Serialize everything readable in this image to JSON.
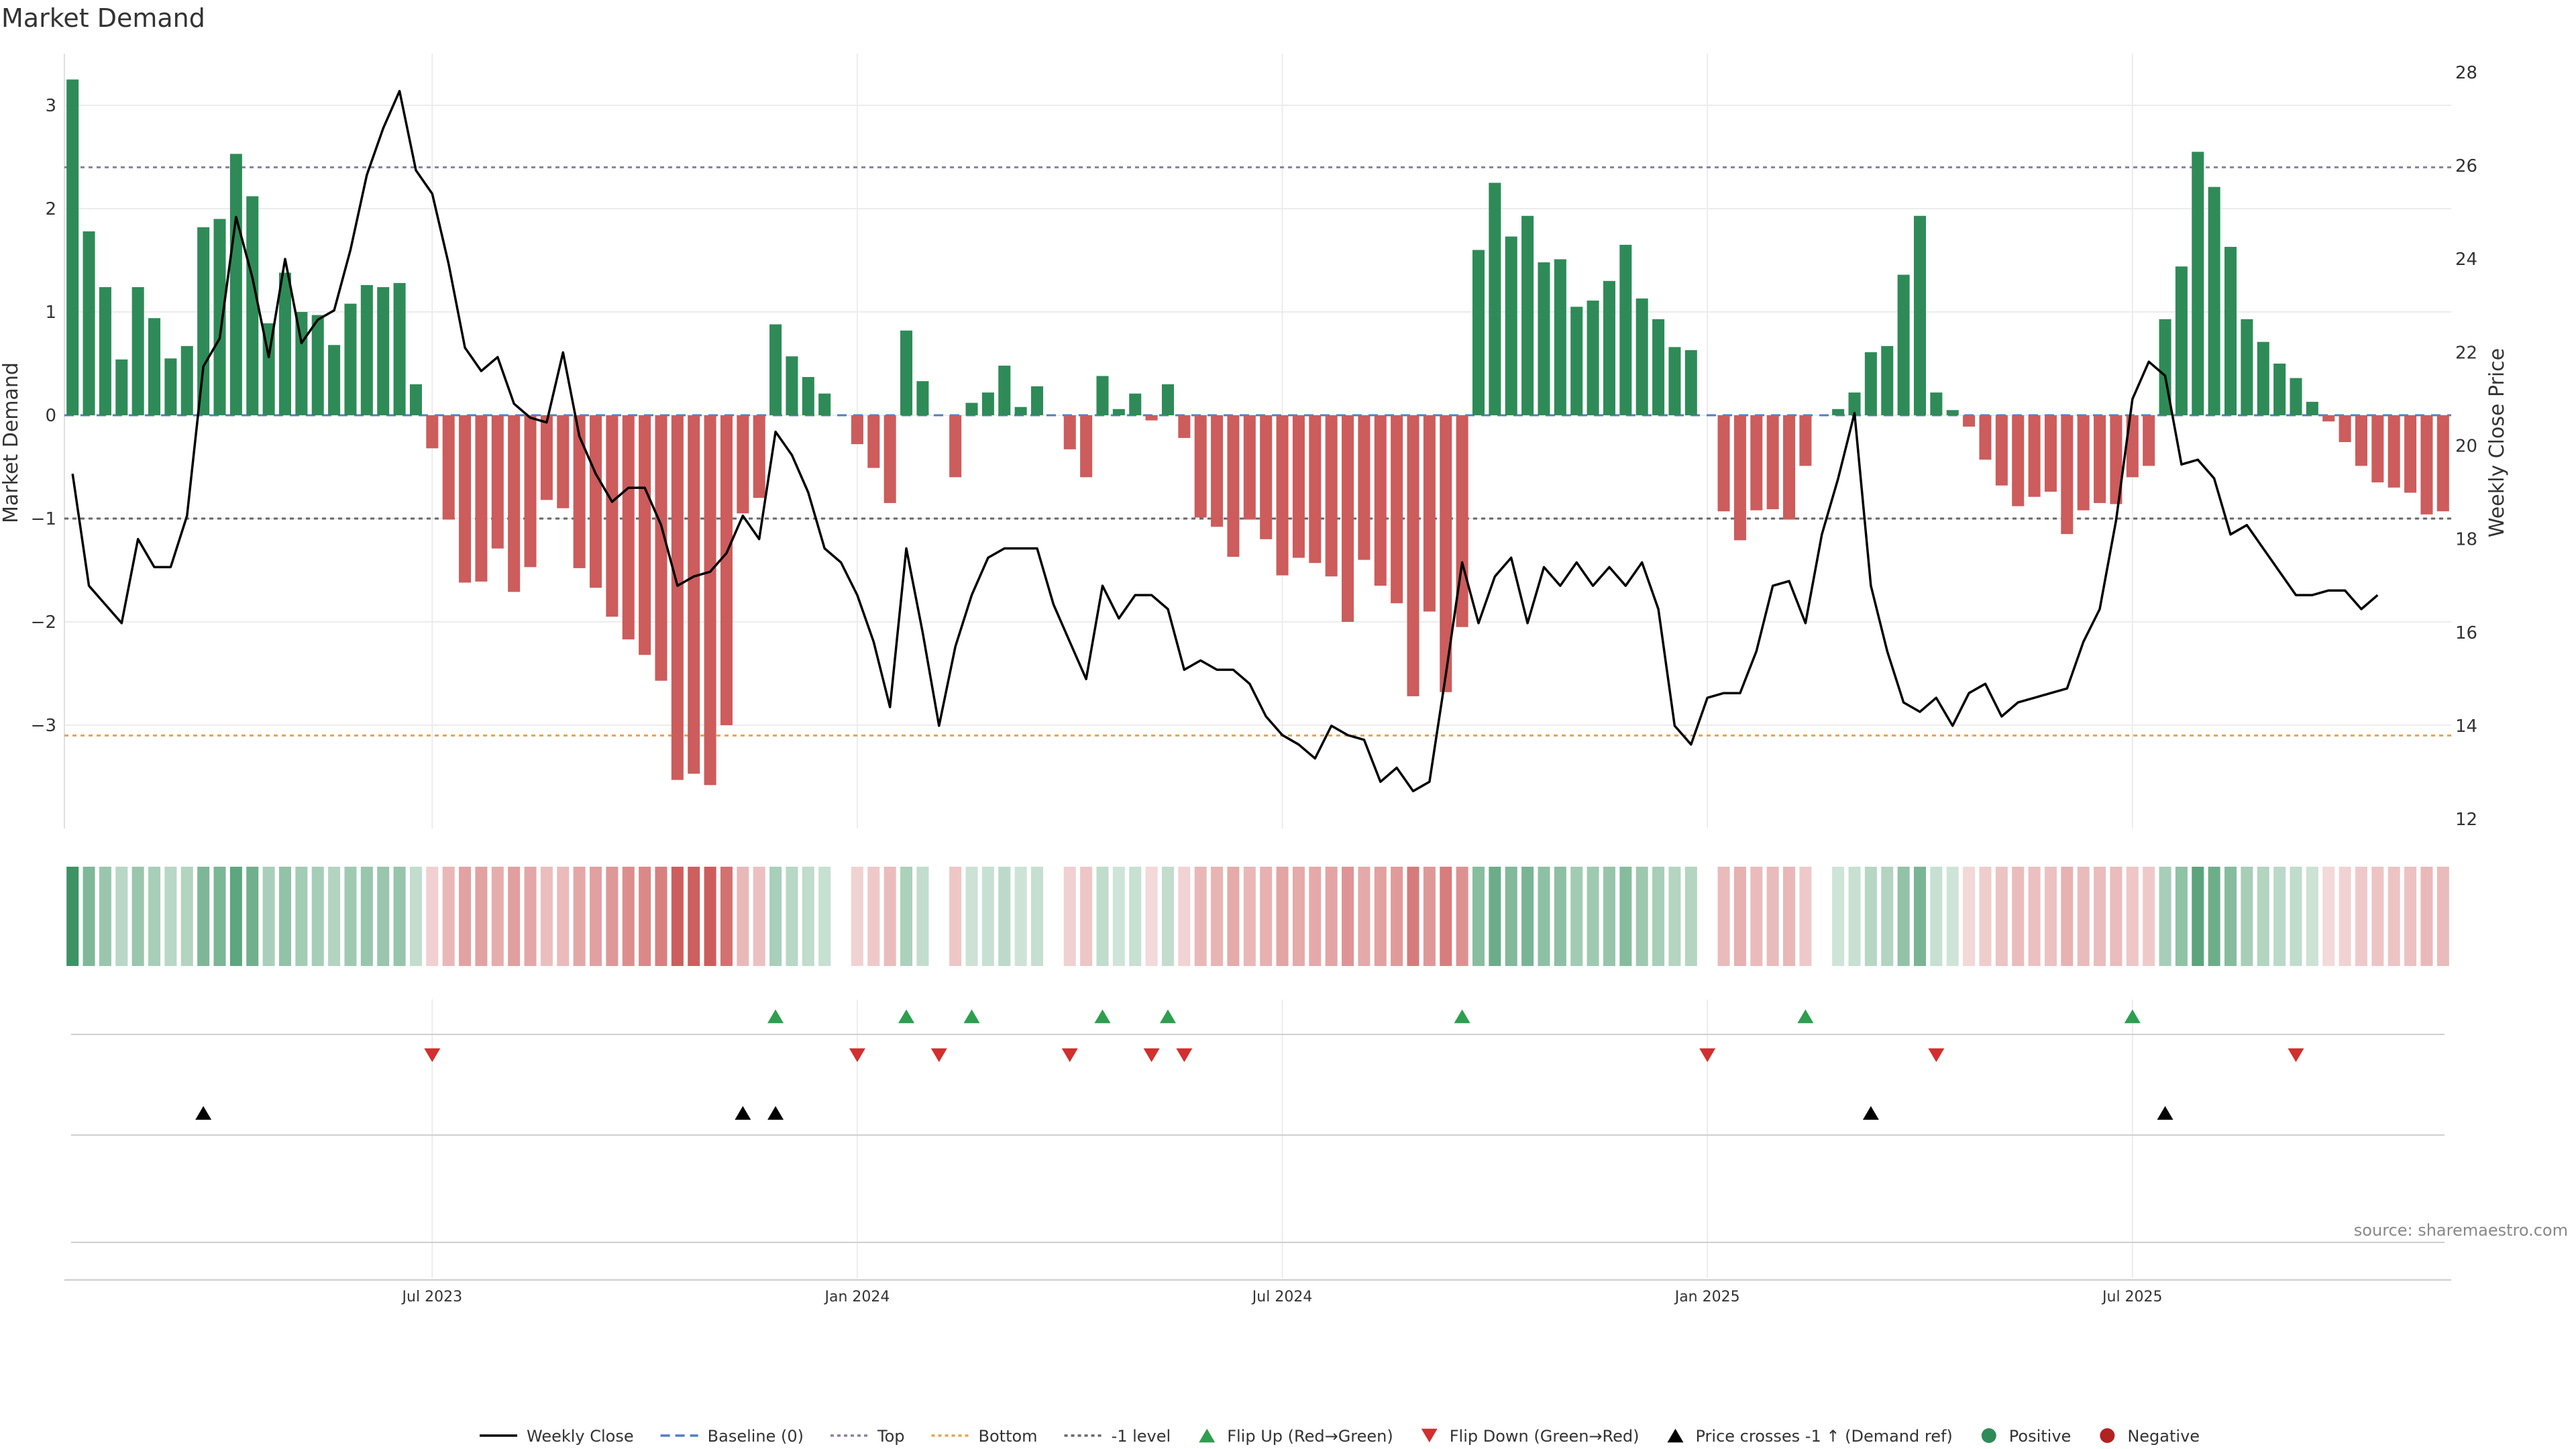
{
  "chart_data": {
    "type": "bar",
    "title": "Market Demand",
    "ylabel_left": "Market Demand",
    "ylabel_right": "Weekly Close Price",
    "left_ylim": [
      -4,
      3.5
    ],
    "right_ylim": [
      11.8,
      28.4
    ],
    "left_ticks": [
      3,
      2,
      1,
      0,
      -1,
      -2,
      -3
    ],
    "left_tick_labels": [
      "3",
      "2",
      "1",
      "0",
      "−1",
      "−2",
      "−3"
    ],
    "right_ticks": [
      28,
      26,
      24,
      22,
      20,
      18,
      16,
      14,
      12
    ],
    "right_tick_labels": [
      "28",
      "26",
      "24",
      "22",
      "20",
      "18",
      "16",
      "14",
      "12"
    ],
    "levels": {
      "top": 2.4,
      "bottom": -3.1,
      "minus_one": -1,
      "baseline": 0
    },
    "x_tick_labels": [
      {
        "label": "Jul 2023",
        "week": 22
      },
      {
        "label": "Jan 2024",
        "week": 48
      },
      {
        "label": "Jul 2024",
        "week": 74
      },
      {
        "label": "Jan 2025",
        "week": 100
      },
      {
        "label": "Jul 2025",
        "week": 126
      }
    ],
    "series": [
      {
        "name": "Market Demand",
        "values": [
          3.25,
          1.78,
          1.24,
          0.54,
          1.24,
          0.94,
          0.55,
          0.67,
          1.82,
          1.9,
          2.53,
          2.12,
          0.89,
          1.38,
          1.0,
          0.97,
          0.68,
          1.08,
          1.26,
          1.24,
          1.28,
          0.3,
          -0.32,
          -1.01,
          -1.62,
          -1.61,
          -1.29,
          -1.71,
          -1.47,
          -0.82,
          -0.9,
          -1.48,
          -1.67,
          -1.95,
          -2.17,
          -2.32,
          -2.57,
          -3.53,
          -3.47,
          -3.58,
          -3.0,
          -0.95,
          -0.8,
          0.88,
          0.57,
          0.37,
          0.21,
          0,
          -0.28,
          -0.51,
          -0.85,
          0.82,
          0.33,
          0,
          -0.6,
          0.12,
          0.22,
          0.48,
          0.08,
          0.28,
          0,
          -0.33,
          -0.6,
          0.38,
          0.06,
          0.21,
          -0.05,
          0.3,
          -0.22,
          -0.99,
          -1.08,
          -1.37,
          -1.01,
          -1.2,
          -1.55,
          -1.38,
          -1.43,
          -1.56,
          -2.0,
          -1.4,
          -1.65,
          -1.82,
          -2.72,
          -1.9,
          -2.68,
          -2.05,
          1.6,
          2.25,
          1.73,
          1.93,
          1.48,
          1.51,
          1.05,
          1.11,
          1.3,
          1.65,
          1.13,
          0.93,
          0.66,
          0.63,
          0,
          -0.93,
          -1.21,
          -0.92,
          -0.91,
          -1.01,
          -0.49,
          0,
          0.06,
          0.22,
          0.61,
          0.67,
          1.36,
          1.93,
          0.22,
          0.05,
          -0.11,
          -0.43,
          -0.68,
          -0.88,
          -0.79,
          -0.74,
          -1.15,
          -0.92,
          -0.85,
          -0.86,
          -0.6,
          -0.49,
          0.93,
          1.44,
          2.55,
          2.21,
          1.63,
          0.93,
          0.71,
          0.5,
          0.36,
          0.13,
          -0.06,
          -0.26,
          -0.49,
          -0.65,
          -0.7,
          -0.75,
          -0.96,
          -0.93
        ]
      },
      {
        "name": "Weekly Close",
        "values": [
          19.4,
          17.0,
          16.6,
          16.2,
          18.0,
          17.4,
          17.4,
          18.5,
          21.7,
          22.3,
          24.9,
          23.6,
          21.9,
          24.0,
          22.2,
          22.7,
          22.9,
          24.2,
          25.8,
          26.8,
          27.6,
          25.9,
          25.4,
          23.9,
          22.1,
          21.6,
          21.9,
          20.9,
          20.6,
          20.5,
          22.0,
          20.2,
          19.4,
          18.8,
          19.1,
          19.1,
          18.3,
          17.0,
          17.2,
          17.3,
          17.7,
          18.5,
          18.0,
          20.3,
          19.8,
          19.0,
          17.8,
          17.5,
          16.8,
          15.8,
          14.4,
          17.8,
          16.0,
          14.0,
          15.7,
          16.8,
          17.6,
          17.8,
          17.8,
          17.8,
          16.6,
          15.8,
          15.0,
          17.0,
          16.3,
          16.8,
          16.8,
          16.5,
          15.2,
          15.4,
          15.2,
          15.2,
          14.9,
          14.2,
          13.8,
          13.6,
          13.3,
          14.0,
          13.8,
          13.7,
          12.8,
          13.1,
          12.6,
          12.8,
          15.1,
          17.5,
          16.2,
          17.2,
          17.6,
          16.2,
          17.4,
          17.0,
          17.5,
          17.0,
          17.4,
          17.0,
          17.5,
          16.5,
          14.0,
          13.6,
          14.6,
          14.7,
          14.7,
          15.6,
          17.0,
          17.1,
          16.2,
          18.1,
          19.3,
          20.7,
          17.0,
          15.6,
          14.5,
          14.3,
          14.6,
          14.0,
          14.7,
          14.9,
          14.2,
          14.5,
          14.6,
          14.7,
          14.8,
          15.8,
          16.5,
          18.4,
          21.0,
          21.8,
          21.5,
          19.6,
          19.7,
          19.3,
          18.1,
          18.3,
          17.8,
          17.3,
          16.8,
          16.8,
          16.9,
          16.9,
          16.5,
          16.8
        ]
      }
    ],
    "markers": {
      "flip_up": [
        43,
        51,
        55,
        63,
        67,
        85,
        106,
        126
      ],
      "flip_down": [
        22,
        48,
        53,
        61,
        66,
        68,
        100,
        114,
        136
      ],
      "price_cross": [
        8,
        41,
        43,
        110,
        128
      ]
    },
    "legend": [
      {
        "label": "Weekly Close",
        "kind": "line-solid",
        "color": "#000000"
      },
      {
        "label": "Baseline (0)",
        "kind": "line-dash",
        "color": "#4f7fbf"
      },
      {
        "label": "Top",
        "kind": "line-dot",
        "color": "#8a7fa8"
      },
      {
        "label": "Bottom",
        "kind": "line-dot",
        "color": "#e8a44a"
      },
      {
        "label": "-1 level",
        "kind": "line-dot",
        "color": "#666666"
      },
      {
        "label": "Flip Up (Red→Green)",
        "kind": "tri-up",
        "color": "#2e9e4f"
      },
      {
        "label": "Flip Down (Green→Red)",
        "kind": "tri-down",
        "color": "#d22f2f"
      },
      {
        "label": "Price crosses -1 ↑ (Demand ref)",
        "kind": "tri-up",
        "color": "#000000"
      },
      {
        "label": "Positive",
        "kind": "dot",
        "color": "#2e8b57"
      },
      {
        "label": "Negative",
        "kind": "dot",
        "color": "#b22222"
      }
    ],
    "colors": {
      "positive": "#2e8b57",
      "negative": "#cd5c5c",
      "flip_up": "#2e9e4f",
      "flip_down": "#d22f2f",
      "price_line": "#000000",
      "top": "#8a7fa8",
      "bottom": "#e8a44a",
      "minus_one": "#666666",
      "baseline": "#4f7fbf"
    },
    "source": "source: sharemaestro.com"
  }
}
